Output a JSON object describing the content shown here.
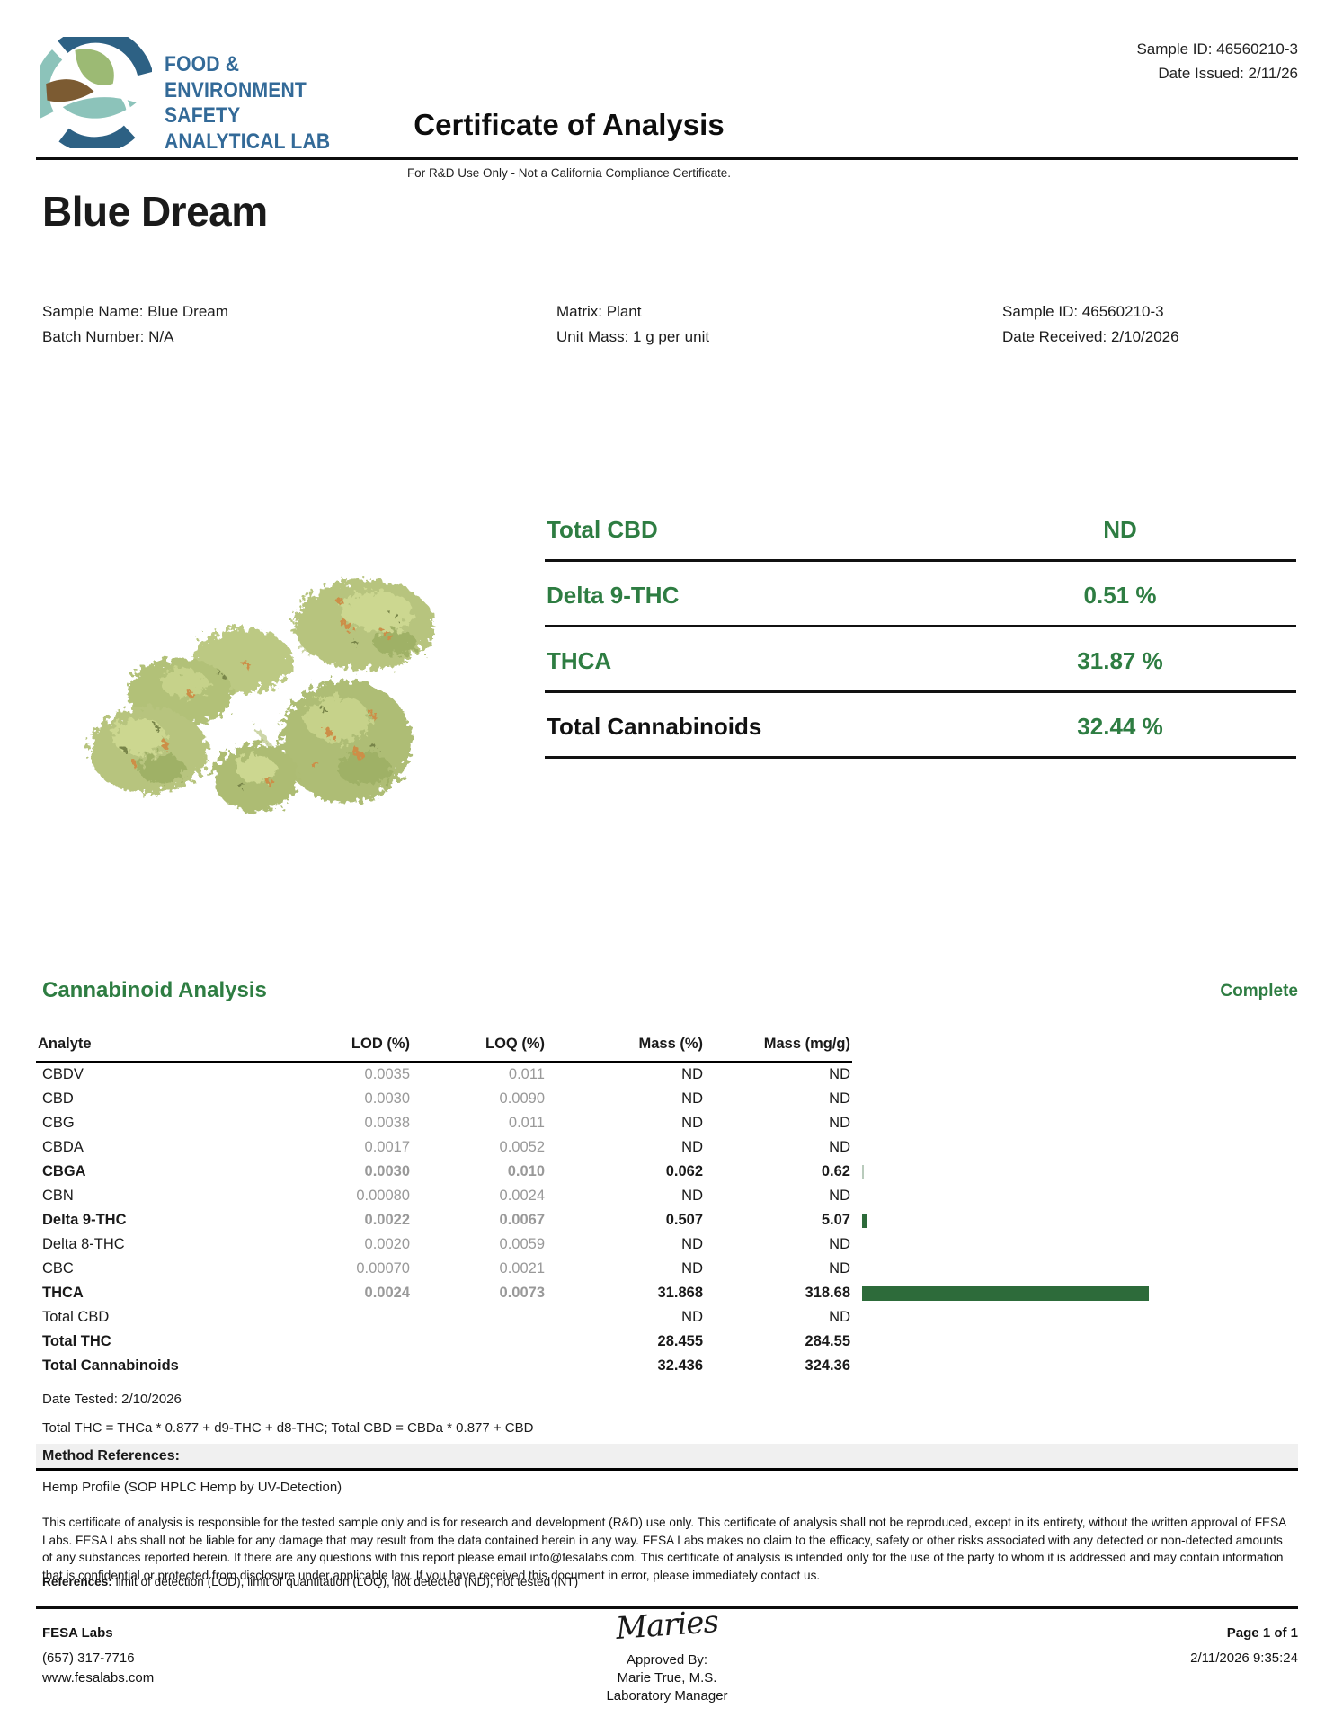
{
  "header": {
    "logo_lines": "FOOD &\nENVIRONMENT\nSAFETY\nANALYTICAL LAB",
    "sample_id": "Sample ID: 46560210-3",
    "date_issued": "Date Issued: 2/11/26",
    "title": "Certificate of Analysis",
    "subtitle": "For R&D Use Only - Not a California Compliance Certificate."
  },
  "product_name": "Blue Dream",
  "sample_info": {
    "col1": "Sample Name: Blue Dream\nBatch Number: N/A",
    "col2": "Matrix: Plant\nUnit Mass: 1 g per unit",
    "col3": "Sample ID: 46560210-3\nDate Received: 2/10/2026"
  },
  "summary": {
    "rows": [
      {
        "label": "Total CBD",
        "value": "ND"
      },
      {
        "label": "Delta 9-THC",
        "value": "0.51 %"
      },
      {
        "label": "THCA",
        "value": "31.87 %"
      },
      {
        "label": "Total Cannabinoids",
        "value": "32.44 %"
      }
    ]
  },
  "analysis": {
    "section_title": "Cannabinoid Analysis",
    "status": "Complete",
    "columns": [
      "Analyte",
      "LOD (%)",
      "LOQ (%)",
      "Mass (%)",
      "Mass (mg/g)"
    ],
    "rows": [
      {
        "analyte": "CBDV",
        "lod": "0.0035",
        "loq": "0.011",
        "mass_pct": "ND",
        "mass_mgg": "ND",
        "bold": false,
        "bar": 0
      },
      {
        "analyte": "CBD",
        "lod": "0.0030",
        "loq": "0.0090",
        "mass_pct": "ND",
        "mass_mgg": "ND",
        "bold": false,
        "bar": 0
      },
      {
        "analyte": "CBG",
        "lod": "0.0038",
        "loq": "0.011",
        "mass_pct": "ND",
        "mass_mgg": "ND",
        "bold": false,
        "bar": 0
      },
      {
        "analyte": "CBDA",
        "lod": "0.0017",
        "loq": "0.0052",
        "mass_pct": "ND",
        "mass_mgg": "ND",
        "bold": false,
        "bar": 0
      },
      {
        "analyte": "CBGA",
        "lod": "0.0030",
        "loq": "0.010",
        "mass_pct": "0.062",
        "mass_mgg": "0.62",
        "bold": true,
        "bar": 0.62,
        "bar_color": "#b9cbbc"
      },
      {
        "analyte": "CBN",
        "lod": "0.00080",
        "loq": "0.0024",
        "mass_pct": "ND",
        "mass_mgg": "ND",
        "bold": false,
        "bar": 0
      },
      {
        "analyte": "Delta 9-THC",
        "lod": "0.0022",
        "loq": "0.0067",
        "mass_pct": "0.507",
        "mass_mgg": "5.07",
        "bold": true,
        "bar": 5.07
      },
      {
        "analyte": "Delta 8-THC",
        "lod": "0.0020",
        "loq": "0.0059",
        "mass_pct": "ND",
        "mass_mgg": "ND",
        "bold": false,
        "bar": 0
      },
      {
        "analyte": "CBC",
        "lod": "0.00070",
        "loq": "0.0021",
        "mass_pct": "ND",
        "mass_mgg": "ND",
        "bold": false,
        "bar": 0
      },
      {
        "analyte": "THCA",
        "lod": "0.0024",
        "loq": "0.0073",
        "mass_pct": "31.868",
        "mass_mgg": "318.68",
        "bold": true,
        "bar": 318.68
      },
      {
        "analyte": "Total CBD",
        "lod": "",
        "loq": "",
        "mass_pct": "ND",
        "mass_mgg": "ND",
        "bold": false,
        "bar": 0
      },
      {
        "analyte": "Total THC",
        "lod": "",
        "loq": "",
        "mass_pct": "28.455",
        "mass_mgg": "284.55",
        "bold": true,
        "bar": 0
      },
      {
        "analyte": "Total Cannabinoids",
        "lod": "",
        "loq": "",
        "mass_pct": "32.436",
        "mass_mgg": "324.36",
        "bold": true,
        "bar": 0
      }
    ],
    "date_tested": "Date Tested: 2/10/2026",
    "formula": "Total THC = THCa * 0.877 + d9-THC + d8-THC; Total CBD = CBDa * 0.877 + CBD"
  },
  "method": {
    "heading": "Method References:",
    "profile": "Hemp Profile (SOP HPLC Hemp by UV-Detection)"
  },
  "disclaimer": "This certificate of analysis is responsible for the tested sample only and is for research and development (R&D) use only. This certificate of analysis shall not be reproduced, except in its entirety, without the written approval of FESA Labs. FESA Labs shall not be liable for any damage that may result from the data contained herein in any way. FESA Labs makes no claim to the efficacy, safety or other risks associated with any detected or non-detected amounts of any substances reported herein. If there are any questions with this report please email info@fesalabs.com. This certificate of analysis is intended only for the use of the party to whom it is addressed and may contain information that is confidential or protected from disclosure under applicable law. If you have received this document in error, please immediately contact us.",
  "references": {
    "label": "References:",
    "text": " limit of detection (LOD), limit of quantitation (LOQ), not detected (ND), not tested (NT)"
  },
  "footer": {
    "lab_name": "FESA Labs",
    "phone": "(657) 317-7716",
    "website": "www.fesalabs.com",
    "signature": "Maries",
    "approved_by": "Approved By:",
    "approver": "Marie True, M.S.",
    "approver_title": "Laboratory Manager",
    "page": "Page 1 of 1",
    "timestamp": "2/11/2026 9:35:24"
  },
  "colors": {
    "green": "#2e7d42",
    "bar_green": "#2d6b3a",
    "logo_blue": "#336a98",
    "logo_dark_blue": "#2d6184",
    "logo_teal": "#8cc3ba",
    "logo_sage": "#9cba74",
    "logo_brown": "#7c5b32"
  }
}
